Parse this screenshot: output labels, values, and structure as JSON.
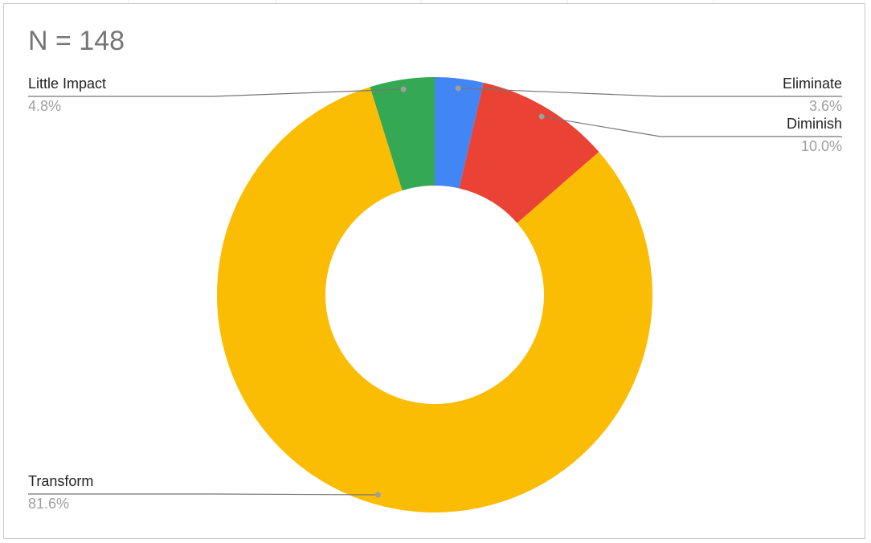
{
  "chart_data": {
    "type": "donut",
    "title": "N = 148",
    "categories": [
      "Eliminate",
      "Diminish",
      "Transform",
      "Little Impact"
    ],
    "values": [
      3.6,
      10.0,
      81.6,
      4.8
    ],
    "value_labels": [
      "3.6%",
      "10.0%",
      "81.6%",
      "4.8%"
    ],
    "colors": [
      "#4285f4",
      "#ea4335",
      "#fbbc04",
      "#34a853"
    ]
  }
}
